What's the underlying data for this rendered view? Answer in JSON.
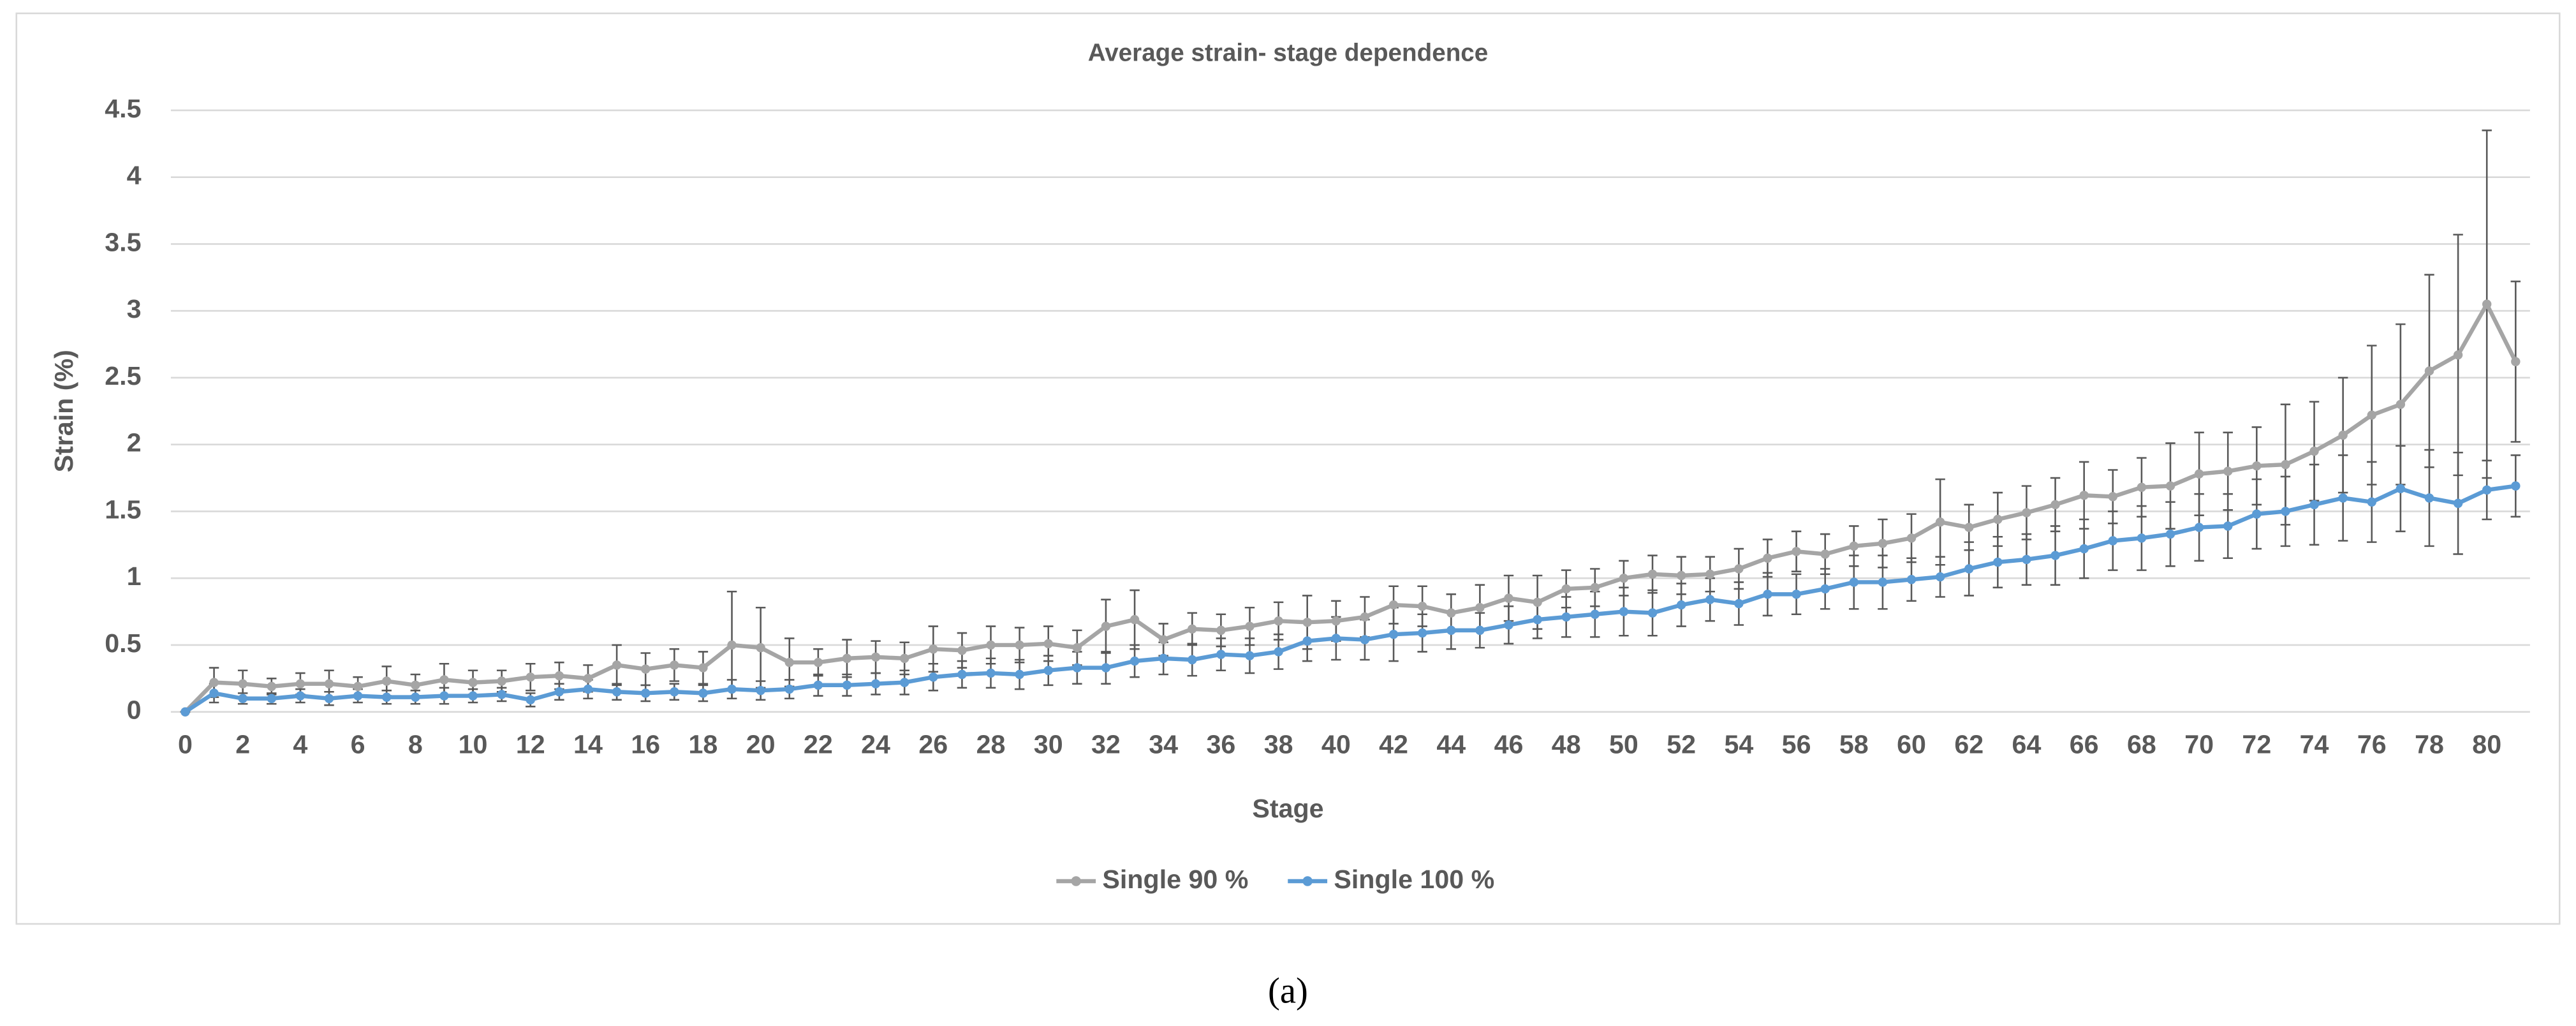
{
  "chart_data": {
    "type": "line",
    "title": "Average strain- stage dependence",
    "x_label": "Stage",
    "y_label": "Strain (%)",
    "x": [
      0,
      1,
      2,
      3,
      4,
      5,
      6,
      7,
      8,
      9,
      10,
      11,
      12,
      13,
      14,
      15,
      16,
      17,
      18,
      19,
      20,
      21,
      22,
      23,
      24,
      25,
      26,
      27,
      28,
      29,
      30,
      31,
      32,
      33,
      34,
      35,
      36,
      37,
      38,
      39,
      40,
      41,
      42,
      43,
      44,
      45,
      46,
      47,
      48,
      49,
      50,
      51,
      52,
      53,
      54,
      55,
      56,
      57,
      58,
      59,
      60,
      61,
      62,
      63,
      64,
      65,
      66,
      67,
      68,
      69,
      70,
      71,
      72,
      73,
      74,
      75,
      76,
      77,
      78,
      79,
      80,
      81
    ],
    "xlim": [
      -0.5,
      81.5
    ],
    "xticks": [
      0,
      2,
      4,
      6,
      8,
      10,
      12,
      14,
      16,
      18,
      20,
      22,
      24,
      26,
      28,
      30,
      32,
      34,
      36,
      38,
      40,
      42,
      44,
      46,
      48,
      50,
      52,
      54,
      56,
      58,
      60,
      62,
      64,
      66,
      68,
      70,
      72,
      74,
      76,
      78,
      80
    ],
    "ylim": [
      0,
      4.5
    ],
    "yticks": [
      0,
      0.5,
      1,
      1.5,
      2,
      2.5,
      3,
      3.5,
      4,
      4.5
    ],
    "grid": true,
    "legend": "bottom",
    "series": [
      {
        "name": "Single 90 %",
        "color": "#a5a5a5",
        "values": [
          0,
          0.22,
          0.21,
          0.19,
          0.21,
          0.21,
          0.19,
          0.23,
          0.2,
          0.24,
          0.22,
          0.23,
          0.26,
          0.27,
          0.25,
          0.35,
          0.32,
          0.35,
          0.33,
          0.5,
          0.48,
          0.37,
          0.37,
          0.4,
          0.41,
          0.4,
          0.47,
          0.46,
          0.5,
          0.5,
          0.51,
          0.48,
          0.64,
          0.69,
          0.54,
          0.62,
          0.61,
          0.64,
          0.68,
          0.67,
          0.68,
          0.71,
          0.8,
          0.79,
          0.74,
          0.78,
          0.85,
          0.82,
          0.92,
          0.93,
          1.0,
          1.03,
          1.02,
          1.03,
          1.07,
          1.15,
          1.2,
          1.18,
          1.24,
          1.26,
          1.3,
          1.42,
          1.38,
          1.44,
          1.49,
          1.55,
          1.62,
          1.61,
          1.68,
          1.69,
          1.78,
          1.8,
          1.84,
          1.85,
          1.95,
          2.07,
          2.22,
          2.3,
          2.55,
          2.67,
          3.05,
          2.62
        ],
        "errors": [
          0,
          0.11,
          0.1,
          0.06,
          0.08,
          0.1,
          0.07,
          0.11,
          0.08,
          0.12,
          0.09,
          0.08,
          0.1,
          0.1,
          0.1,
          0.15,
          0.12,
          0.12,
          0.12,
          0.4,
          0.3,
          0.18,
          0.1,
          0.14,
          0.12,
          0.12,
          0.17,
          0.13,
          0.14,
          0.13,
          0.13,
          0.13,
          0.2,
          0.22,
          0.12,
          0.12,
          0.12,
          0.14,
          0.14,
          0.2,
          0.15,
          0.15,
          0.14,
          0.15,
          0.14,
          0.17,
          0.17,
          0.2,
          0.14,
          0.14,
          0.13,
          0.14,
          0.14,
          0.13,
          0.15,
          0.14,
          0.15,
          0.15,
          0.15,
          0.18,
          0.18,
          0.32,
          0.17,
          0.2,
          0.2,
          0.2,
          0.25,
          0.2,
          0.22,
          0.32,
          0.31,
          0.29,
          0.29,
          0.45,
          0.37,
          0.43,
          0.52,
          0.6,
          0.72,
          0.9,
          1.3,
          0.6
        ]
      },
      {
        "name": "Single 100 %",
        "color": "#5b9bd5",
        "values": [
          0,
          0.14,
          0.1,
          0.1,
          0.12,
          0.1,
          0.12,
          0.11,
          0.11,
          0.12,
          0.12,
          0.13,
          0.09,
          0.15,
          0.17,
          0.15,
          0.14,
          0.15,
          0.14,
          0.17,
          0.16,
          0.17,
          0.2,
          0.2,
          0.21,
          0.22,
          0.26,
          0.28,
          0.29,
          0.28,
          0.31,
          0.33,
          0.33,
          0.38,
          0.4,
          0.39,
          0.43,
          0.42,
          0.45,
          0.53,
          0.55,
          0.54,
          0.58,
          0.59,
          0.61,
          0.61,
          0.65,
          0.69,
          0.71,
          0.73,
          0.75,
          0.74,
          0.8,
          0.84,
          0.81,
          0.88,
          0.88,
          0.92,
          0.97,
          0.97,
          0.99,
          1.01,
          1.07,
          1.12,
          1.14,
          1.17,
          1.22,
          1.28,
          1.3,
          1.33,
          1.38,
          1.39,
          1.48,
          1.5,
          1.55,
          1.6,
          1.57,
          1.67,
          1.6,
          1.56,
          1.66,
          1.69
        ],
        "errors": [
          0,
          0.07,
          0.04,
          0.04,
          0.05,
          0.05,
          0.05,
          0.05,
          0.05,
          0.06,
          0.05,
          0.05,
          0.05,
          0.06,
          0.07,
          0.06,
          0.06,
          0.06,
          0.06,
          0.07,
          0.07,
          0.07,
          0.08,
          0.08,
          0.08,
          0.09,
          0.1,
          0.1,
          0.11,
          0.11,
          0.11,
          0.12,
          0.12,
          0.12,
          0.12,
          0.12,
          0.12,
          0.13,
          0.13,
          0.15,
          0.16,
          0.15,
          0.2,
          0.14,
          0.14,
          0.13,
          0.14,
          0.14,
          0.15,
          0.17,
          0.18,
          0.17,
          0.16,
          0.16,
          0.16,
          0.16,
          0.15,
          0.15,
          0.2,
          0.2,
          0.16,
          0.15,
          0.2,
          0.19,
          0.19,
          0.22,
          0.22,
          0.22,
          0.24,
          0.24,
          0.25,
          0.24,
          0.26,
          0.26,
          0.3,
          0.32,
          0.3,
          0.32,
          0.36,
          0.38,
          0.22,
          0.23
        ]
      }
    ]
  },
  "caption": "(a)"
}
